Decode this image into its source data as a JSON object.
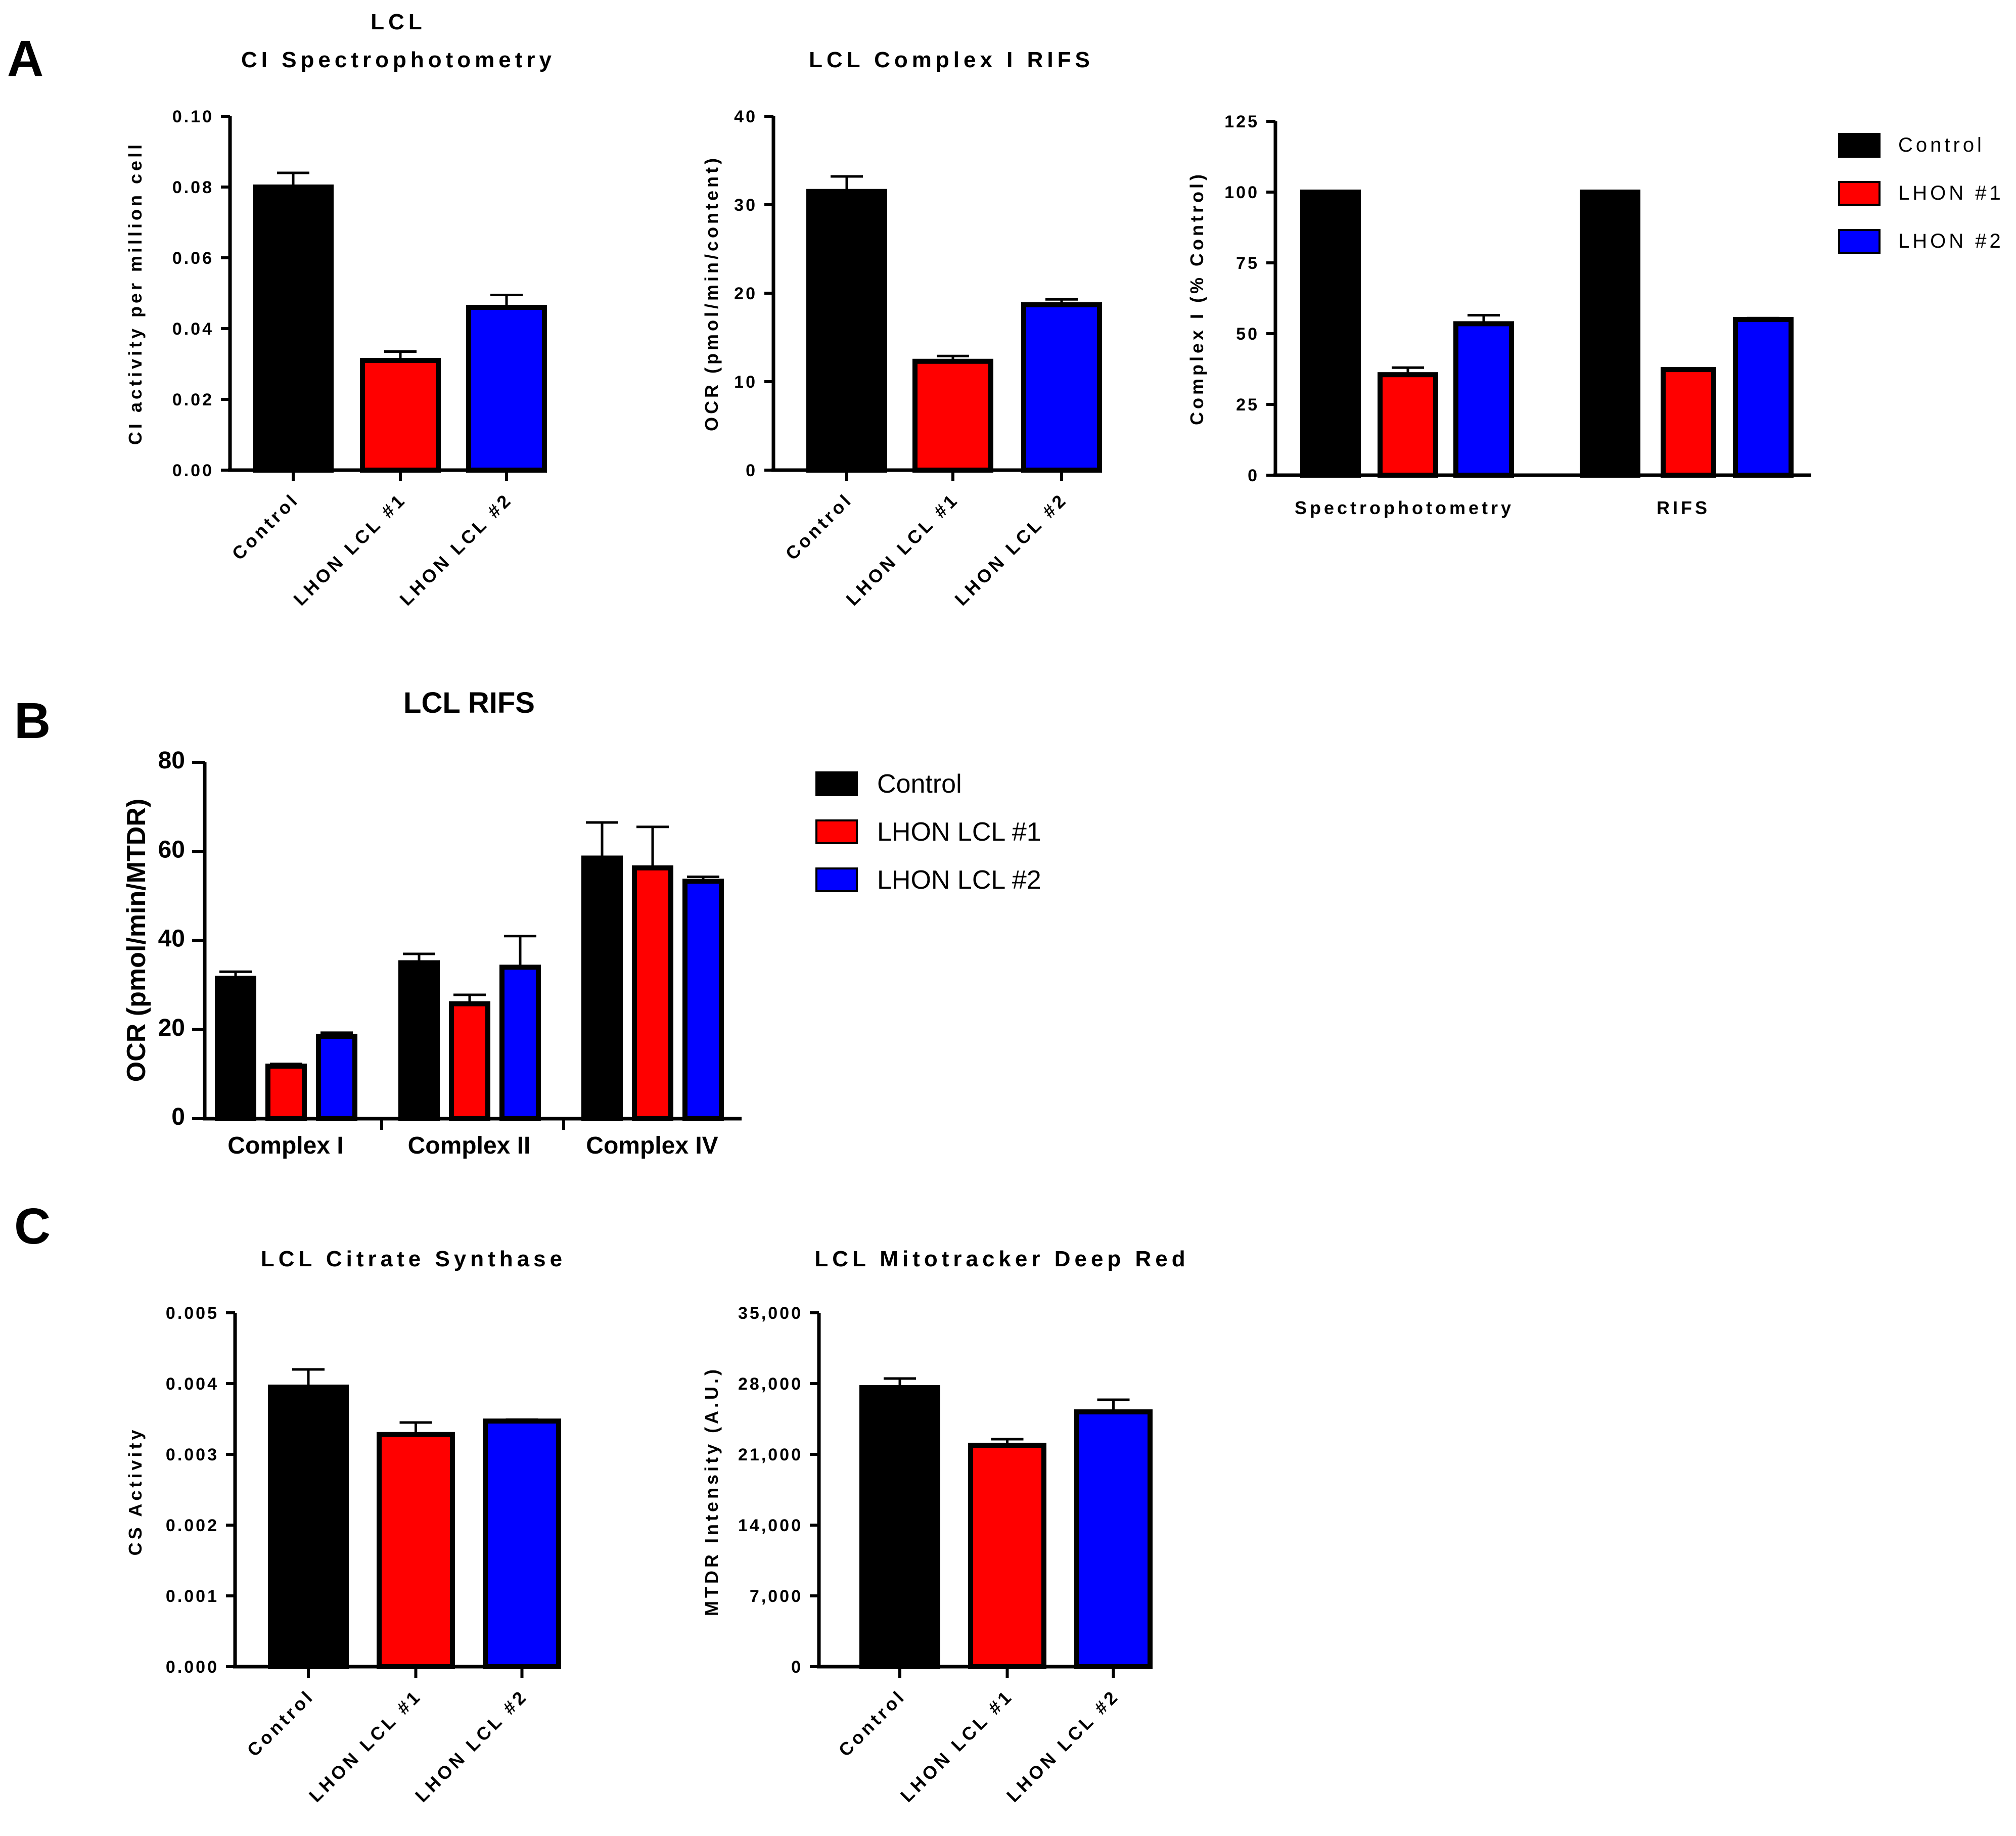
{
  "panels": [
    {
      "id": "A",
      "label": "A"
    },
    {
      "id": "B",
      "label": "B"
    },
    {
      "id": "C",
      "label": "C"
    }
  ],
  "chart_data": [
    {
      "id": "a1",
      "panel": "A",
      "type": "bar",
      "title": [
        "LCL",
        "CI Spectrophotometry"
      ],
      "ylabel": "CI activity per million cell",
      "xlabel": "",
      "categories": [
        "Control",
        "LHON LCL #1",
        "LHON LCL #2"
      ],
      "values": [
        0.08,
        0.031,
        0.046
      ],
      "errors": [
        0.004,
        0.0025,
        0.0035
      ],
      "colors": [
        "#000000",
        "#ff0000",
        "#0000ff"
      ],
      "ylim": [
        0,
        0.1
      ],
      "yticks": [
        "0.00",
        "0.02",
        "0.04",
        "0.06",
        "0.08",
        "0.10"
      ]
    },
    {
      "id": "a2",
      "panel": "A",
      "type": "bar",
      "title": [
        "LCL Complex I RIFS"
      ],
      "ylabel": "OCR (pmol/min/content)",
      "xlabel": "",
      "categories": [
        "Control",
        "LHON LCL #1",
        "LHON LCL #2"
      ],
      "values": [
        31.5,
        12.3,
        18.7
      ],
      "errors": [
        1.7,
        0.6,
        0.6
      ],
      "colors": [
        "#000000",
        "#ff0000",
        "#0000ff"
      ],
      "ylim": [
        0,
        40
      ],
      "yticks": [
        "0",
        "10",
        "20",
        "30",
        "40"
      ]
    },
    {
      "id": "a3",
      "panel": "A",
      "type": "bar",
      "title": [],
      "ylabel": "Complex I (% Control)",
      "xlabel": "",
      "categories": [
        "Spectrophotometry",
        "RIFS"
      ],
      "series": [
        {
          "name": "Control",
          "color": "#000000",
          "values": [
            100,
            100
          ],
          "errors": [
            0,
            0
          ]
        },
        {
          "name": "LHON #1",
          "color": "#ff0000",
          "values": [
            35.5,
            37.3
          ],
          "errors": [
            2.5,
            0
          ]
        },
        {
          "name": "LHON #2",
          "color": "#0000ff",
          "values": [
            53.5,
            55
          ],
          "errors": [
            3,
            0.5
          ]
        }
      ],
      "ylim": [
        0,
        125
      ],
      "yticks": [
        "0",
        "25",
        "50",
        "75",
        "100",
        "125"
      ],
      "legend": {
        "position": "right",
        "entries": [
          "Control",
          "LHON #1",
          "LHON #2"
        ]
      }
    },
    {
      "id": "b1",
      "panel": "B",
      "type": "bar",
      "title": [
        "LCL RIFS"
      ],
      "ylabel": "OCR (pmol/min/MTDR)",
      "xlabel": "",
      "categories": [
        "Complex I",
        "Complex II",
        "Complex IV"
      ],
      "series": [
        {
          "name": "Control",
          "color": "#000000",
          "values": [
            31.5,
            35,
            58.5
          ],
          "errors": [
            1.5,
            2,
            8
          ]
        },
        {
          "name": "LHON LCL #1",
          "color": "#ff0000",
          "values": [
            11.8,
            25.8,
            56.3
          ],
          "errors": [
            0.5,
            2,
            9.2
          ]
        },
        {
          "name": "LHON LCL #2",
          "color": "#0000ff",
          "values": [
            18.5,
            34,
            53.3
          ],
          "errors": [
            0.8,
            7,
            1
          ]
        }
      ],
      "ylim": [
        0,
        80
      ],
      "yticks": [
        "0",
        "20",
        "40",
        "60",
        "80"
      ],
      "legend": {
        "position": "right",
        "entries": [
          "Control",
          "LHON LCL #1",
          "LHON LCL #2"
        ]
      }
    },
    {
      "id": "c1",
      "panel": "C",
      "type": "bar",
      "title": [
        "LCL Citrate Synthase"
      ],
      "ylabel": "CS Activity",
      "xlabel": "",
      "categories": [
        "Control",
        "LHON LCL #1",
        "LHON LCL #2"
      ],
      "values": [
        0.00395,
        0.00328,
        0.00347
      ],
      "errors": [
        0.00025,
        0.00017,
        2e-05
      ],
      "colors": [
        "#000000",
        "#ff0000",
        "#0000ff"
      ],
      "ylim": [
        0,
        0.005
      ],
      "yticks": [
        "0.000",
        "0.001",
        "0.002",
        "0.003",
        "0.004",
        "0.005"
      ]
    },
    {
      "id": "c2",
      "panel": "C",
      "type": "bar",
      "title": [
        "LCL Mitotracker Deep Red"
      ],
      "ylabel": "MTDR Intensity (A.U.)",
      "xlabel": "",
      "categories": [
        "Control",
        "LHON LCL #1",
        "LHON LCL #2"
      ],
      "values": [
        27600,
        21900,
        25200
      ],
      "errors": [
        900,
        600,
        1200
      ],
      "colors": [
        "#000000",
        "#ff0000",
        "#0000ff"
      ],
      "ylim": [
        0,
        35000
      ],
      "yticks": [
        "0",
        "7,000",
        "14,000",
        "21,000",
        "28,000",
        "35,000"
      ]
    }
  ]
}
